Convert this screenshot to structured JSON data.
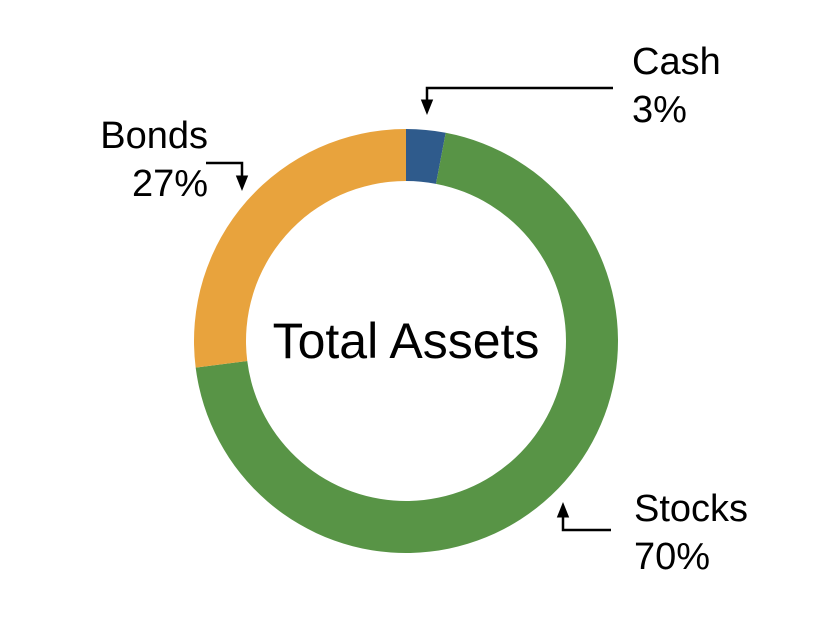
{
  "figure": {
    "background": "#ffffff"
  },
  "chart_data": {
    "type": "pie",
    "subtype": "donut",
    "title": "Total Assets",
    "center_label": "Total Assets",
    "start_angle_deg": 0,
    "direction": "clockwise",
    "inner_radius_ratio": 0.755,
    "legend": "callout-labels",
    "slices": [
      {
        "label": "Cash",
        "value": 3,
        "display": "3%",
        "color": "#2F5B8C"
      },
      {
        "label": "Stocks",
        "value": 70,
        "display": "70%",
        "color": "#589446"
      },
      {
        "label": "Bonds",
        "value": 27,
        "display": "27%",
        "color": "#E8A33D"
      }
    ]
  },
  "callouts": {
    "cash": {
      "name": "Cash",
      "value": "3%"
    },
    "bonds": {
      "name": "Bonds",
      "value": "27%"
    },
    "stocks": {
      "name": "Stocks",
      "value": "70%"
    }
  }
}
